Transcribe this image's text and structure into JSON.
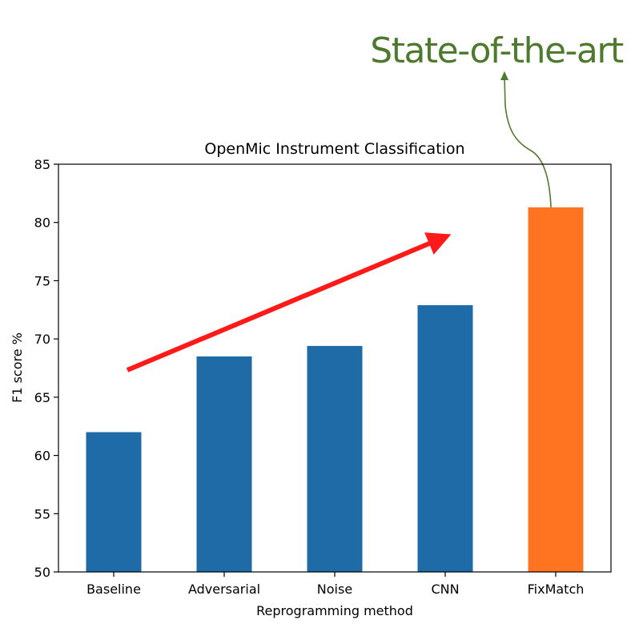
{
  "chart_data": {
    "type": "bar",
    "title": "OpenMic Instrument Classification",
    "xlabel": "Reprogramming method",
    "ylabel": "F1 score %",
    "categories": [
      "Baseline",
      "Adversarial",
      "Noise",
      "CNN",
      "FixMatch"
    ],
    "values": [
      62.0,
      68.5,
      69.4,
      72.9,
      81.3
    ],
    "bar_colors": [
      "#1f6ba8",
      "#1f6ba8",
      "#1f6ba8",
      "#1f6ba8",
      "#ff7420"
    ],
    "ylim": [
      50,
      85
    ],
    "yticks": [
      50,
      55,
      60,
      65,
      70,
      75,
      80,
      85
    ],
    "grid": false,
    "legend": "none"
  },
  "annotation": {
    "text": "State-of-the-art",
    "color": "#4e7a2e"
  },
  "trend_arrow": {
    "color": "#ff1a1a"
  }
}
